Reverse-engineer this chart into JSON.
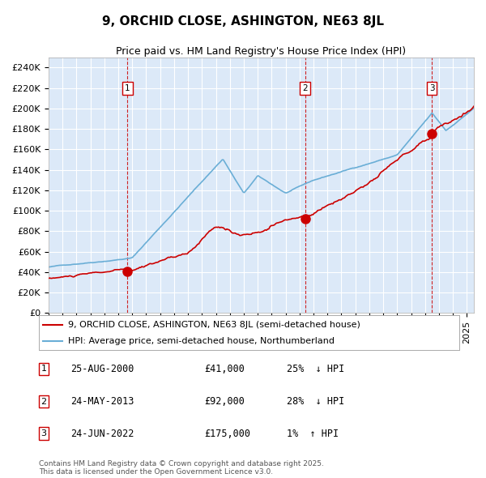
{
  "title": "9, ORCHID CLOSE, ASHINGTON, NE63 8JL",
  "subtitle": "Price paid vs. HM Land Registry's House Price Index (HPI)",
  "property_label": "9, ORCHID CLOSE, ASHINGTON, NE63 8JL (semi-detached house)",
  "hpi_label": "HPI: Average price, semi-detached house, Northumberland",
  "footer1": "Contains HM Land Registry data © Crown copyright and database right 2025.",
  "footer2": "This data is licensed under the Open Government Licence v3.0.",
  "sales": [
    {
      "num": 1,
      "date": "25-AUG-2000",
      "price": 41000,
      "pct": "25%",
      "dir": "↓",
      "year_float": 2000.65
    },
    {
      "num": 2,
      "date": "24-MAY-2013",
      "price": 92000,
      "pct": "28%",
      "dir": "↓",
      "year_float": 2013.4
    },
    {
      "num": 3,
      "date": "24-JUN-2022",
      "price": 175000,
      "pct": "1%",
      "dir": "↑",
      "year_float": 2022.48
    }
  ],
  "ylim": [
    0,
    250000
  ],
  "yticks": [
    0,
    20000,
    40000,
    60000,
    80000,
    100000,
    120000,
    140000,
    160000,
    180000,
    200000,
    220000,
    240000
  ],
  "ytick_labels": [
    "£0",
    "£20K",
    "£40K",
    "£60K",
    "£80K",
    "£100K",
    "£120K",
    "£140K",
    "£160K",
    "£180K",
    "£200K",
    "£220K",
    "£240K"
  ],
  "xlim_start": 1995.0,
  "xlim_end": 2025.5,
  "background_color": "#dce9f8",
  "hpi_color": "#6aaed6",
  "property_color": "#cc0000",
  "vline_color": "#cc0000",
  "marker_color": "#cc0000",
  "marker_size": 8,
  "title_fontsize": 11,
  "subtitle_fontsize": 9,
  "tick_fontsize": 8,
  "legend_fontsize": 8,
  "table_fontsize": 8.5,
  "footer_fontsize": 6.5
}
